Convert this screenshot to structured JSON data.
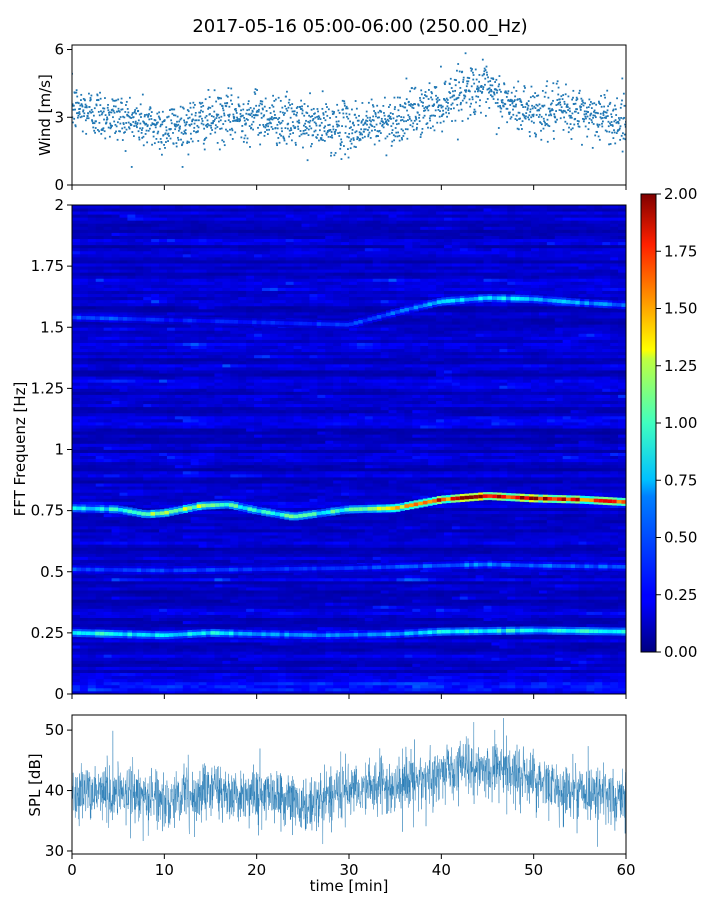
{
  "figure": {
    "title": "2017-05-16 05:00-06:00 (250.00_Hz)"
  },
  "chart_data": [
    {
      "id": "wind",
      "type": "scatter",
      "title": "",
      "xlabel": "",
      "ylabel": "Wind [m/s]",
      "xlim": [
        0,
        60
      ],
      "ylim": [
        0,
        6.2
      ],
      "yticks": [
        0,
        3,
        6
      ],
      "xticks": [
        0,
        10,
        20,
        30,
        40,
        50,
        60
      ],
      "marker_color": "#1f77b4",
      "trend": {
        "x": [
          0,
          5,
          10,
          15,
          20,
          25,
          30,
          35,
          38,
          40,
          42,
          44,
          46,
          48,
          50,
          55,
          60
        ],
        "y": [
          3.4,
          3.0,
          2.5,
          2.9,
          3.1,
          2.7,
          2.5,
          2.9,
          3.3,
          3.6,
          4.2,
          4.3,
          3.9,
          3.4,
          3.3,
          3.2,
          2.8
        ]
      },
      "spread": 0.55,
      "min": 0.8,
      "max": 5.9,
      "n_points": 1800
    },
    {
      "id": "spectrogram",
      "type": "heatmap",
      "title": "",
      "xlabel": "",
      "ylabel": "FFT Frequenz [Hz]",
      "xlim": [
        0,
        60
      ],
      "ylim": [
        0,
        2
      ],
      "yticks": [
        0,
        0.25,
        0.5,
        0.75,
        1,
        1.25,
        1.5,
        1.75,
        2
      ],
      "ytick_labels": [
        "0",
        "0.25",
        "0.5",
        "0.75",
        "1",
        "1.25",
        "1.5",
        "1.75",
        "2"
      ],
      "colormap": "jet",
      "colorbar": {
        "range": [
          0,
          2
        ],
        "ticks": [
          0,
          0.25,
          0.5,
          0.75,
          1,
          1.25,
          1.5,
          1.75,
          2
        ],
        "tick_labels": [
          "0.00",
          "0.25",
          "0.50",
          "0.75",
          "1.00",
          "1.25",
          "1.50",
          "1.75",
          "2.00"
        ]
      },
      "background_level": 0.15,
      "bands": [
        {
          "x": [
            0,
            5,
            8,
            10,
            14,
            17,
            20,
            24,
            27,
            30,
            35,
            40,
            45,
            50,
            55,
            60
          ],
          "freq": [
            0.76,
            0.755,
            0.735,
            0.74,
            0.77,
            0.775,
            0.75,
            0.725,
            0.74,
            0.755,
            0.76,
            0.795,
            0.81,
            0.8,
            0.795,
            0.785
          ],
          "amplitude": [
            0.7,
            0.75,
            1.0,
            1.05,
            1.05,
            0.95,
            0.7,
            0.9,
            0.8,
            0.85,
            1.2,
            1.65,
            2.0,
            1.85,
            1.7,
            1.6
          ]
        },
        {
          "x": [
            0,
            10,
            15,
            20,
            27,
            35,
            40,
            50,
            60
          ],
          "freq": [
            0.25,
            0.24,
            0.25,
            0.245,
            0.24,
            0.245,
            0.255,
            0.26,
            0.255
          ],
          "amplitude": [
            0.85,
            0.65,
            0.75,
            0.55,
            0.5,
            0.55,
            0.7,
            0.75,
            0.75
          ]
        },
        {
          "x": [
            0,
            10,
            20,
            30,
            40,
            45,
            50,
            60
          ],
          "freq": [
            0.51,
            0.505,
            0.51,
            0.515,
            0.525,
            0.53,
            0.525,
            0.52
          ],
          "amplitude": [
            0.4,
            0.35,
            0.35,
            0.35,
            0.45,
            0.5,
            0.45,
            0.4
          ]
        },
        {
          "x": [
            0,
            10,
            20,
            30,
            36,
            40,
            45,
            50,
            55,
            60
          ],
          "freq": [
            1.54,
            1.53,
            1.52,
            1.51,
            1.57,
            1.605,
            1.62,
            1.615,
            1.6,
            1.59
          ],
          "amplitude": [
            0.45,
            0.3,
            0.3,
            0.35,
            0.45,
            0.6,
            0.7,
            0.6,
            0.55,
            0.45
          ]
        }
      ]
    },
    {
      "id": "spl",
      "type": "line",
      "title": "",
      "xlabel": "time [min]",
      "ylabel": "SPL [dB]",
      "xlim": [
        0,
        60
      ],
      "ylim": [
        29.5,
        52.5
      ],
      "yticks": [
        30,
        40,
        50
      ],
      "xticks": [
        0,
        10,
        20,
        30,
        40,
        50,
        60
      ],
      "line_color": "#1f77b4",
      "trend": {
        "x": [
          0,
          5,
          10,
          15,
          20,
          25,
          28,
          32,
          36,
          40,
          43,
          46,
          50,
          55,
          60
        ],
        "y": [
          39,
          40,
          38.5,
          40,
          39.5,
          37.5,
          39,
          40.5,
          41,
          43,
          44,
          43.5,
          41.5,
          39.5,
          38.5
        ]
      },
      "band_halfwidth": 2.3,
      "spike_extent": 5.5
    }
  ]
}
